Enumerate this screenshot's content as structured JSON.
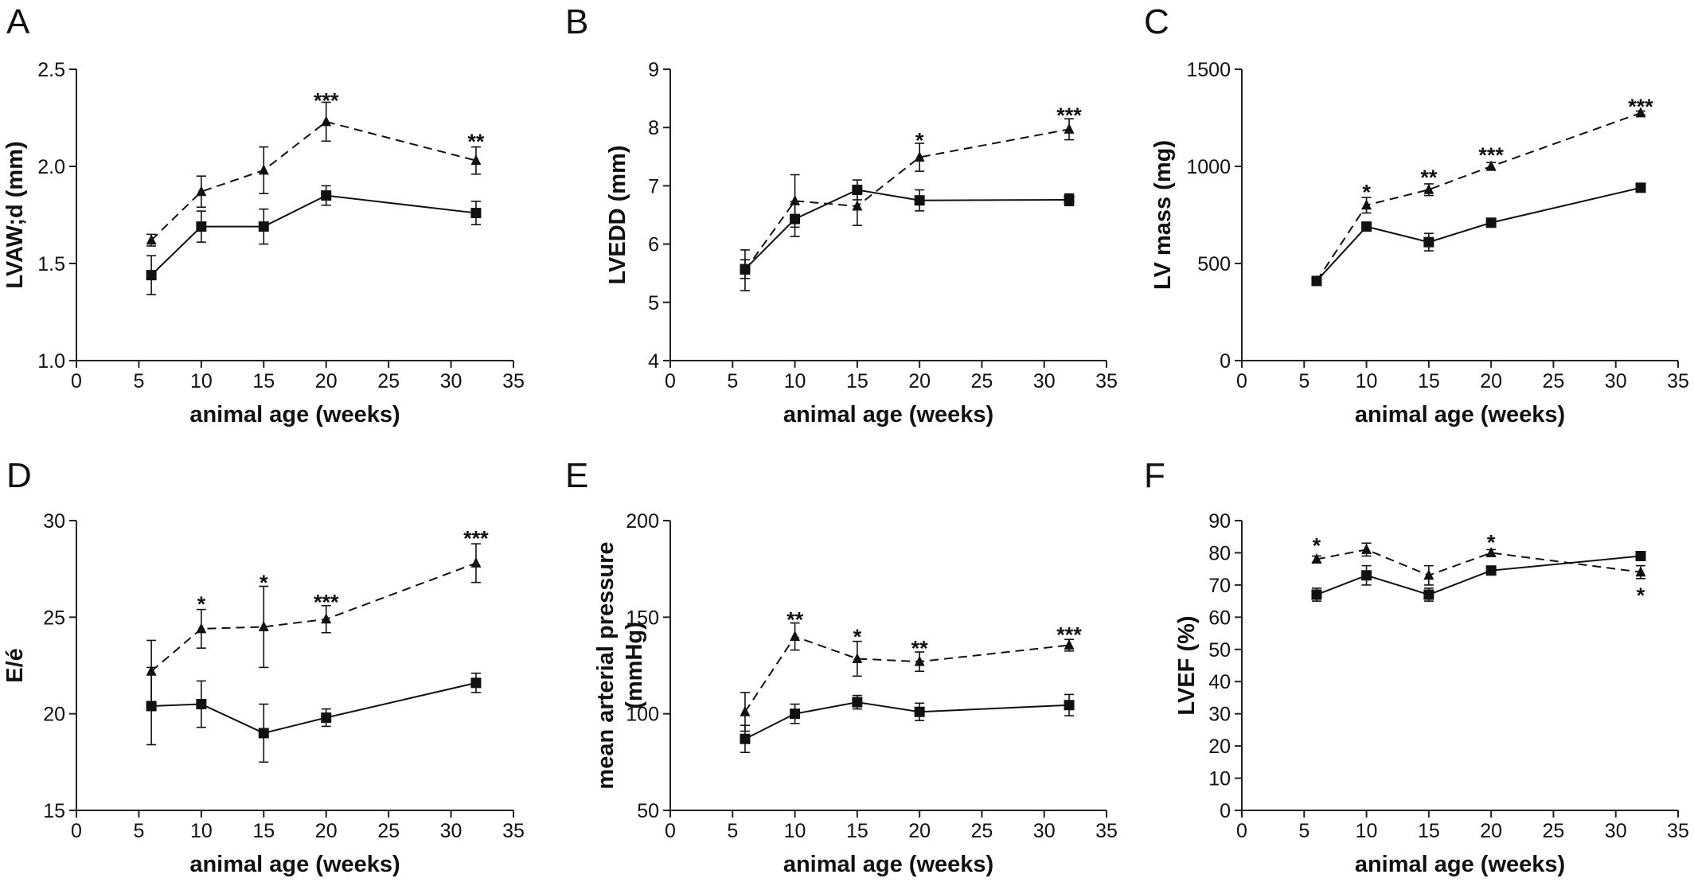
{
  "chart_data": [
    {
      "panel": "A",
      "type": "line",
      "xlabel": "animal age (weeks)",
      "ylabel": "LVAW;d (mm)",
      "xlim": [
        0,
        35
      ],
      "ylim": [
        1.0,
        2.5
      ],
      "xticks": [
        "0",
        "5",
        "10",
        "15",
        "20",
        "25",
        "30",
        "35"
      ],
      "yticks": [
        "1.0",
        "1.5",
        "2.0",
        "2.5"
      ],
      "x": [
        6,
        10,
        15,
        20,
        32
      ],
      "series": [
        {
          "marker": "square",
          "line": "solid",
          "values": [
            1.44,
            1.69,
            1.69,
            1.85,
            1.76
          ],
          "errors": [
            0.1,
            0.08,
            0.09,
            0.05,
            0.06
          ]
        },
        {
          "marker": "triangle",
          "line": "dashed",
          "values": [
            1.62,
            1.87,
            1.98,
            2.23,
            2.03
          ],
          "errors": [
            0.03,
            0.08,
            0.12,
            0.1,
            0.07
          ]
        }
      ],
      "annotations": [
        {
          "x": 20,
          "y": 2.35,
          "text": "***"
        },
        {
          "x": 32,
          "y": 2.14,
          "text": "**"
        }
      ]
    },
    {
      "panel": "B",
      "type": "line",
      "xlabel": "animal age (weeks)",
      "ylabel": "LVEDD (mm)",
      "xlim": [
        0,
        35
      ],
      "ylim": [
        4,
        9
      ],
      "xticks": [
        "0",
        "5",
        "10",
        "15",
        "20",
        "25",
        "30",
        "35"
      ],
      "yticks": [
        "4",
        "5",
        "6",
        "7",
        "8",
        "9"
      ],
      "x": [
        6,
        10,
        15,
        20,
        32
      ],
      "series": [
        {
          "marker": "square",
          "line": "solid",
          "values": [
            5.57,
            6.43,
            6.93,
            6.75,
            6.76
          ],
          "errors": [
            0.16,
            0.3,
            0.17,
            0.18,
            0.1
          ]
        },
        {
          "marker": "triangle",
          "line": "dashed",
          "values": [
            5.55,
            6.74,
            6.65,
            7.49,
            7.97
          ],
          "errors": [
            0.35,
            0.45,
            0.33,
            0.24,
            0.18
          ]
        }
      ],
      "annotations": [
        {
          "x": 20,
          "y": 7.82,
          "text": "*"
        },
        {
          "x": 32,
          "y": 8.25,
          "text": "***"
        }
      ]
    },
    {
      "panel": "C",
      "type": "line",
      "xlabel": "animal age (weeks)",
      "ylabel": "LV mass (mg)",
      "xlim": [
        0,
        35
      ],
      "ylim": [
        0,
        1500
      ],
      "xticks": [
        "0",
        "5",
        "10",
        "15",
        "20",
        "25",
        "30",
        "35"
      ],
      "yticks": [
        "0",
        "500",
        "1000",
        "1500"
      ],
      "x": [
        6,
        10,
        15,
        20,
        32
      ],
      "series": [
        {
          "marker": "square",
          "line": "solid",
          "values": [
            410,
            690,
            610,
            710,
            890
          ],
          "errors": [
            10,
            15,
            45,
            15,
            10
          ]
        },
        {
          "marker": "triangle",
          "line": "dashed",
          "values": [
            410,
            800,
            880,
            1000,
            1275
          ],
          "errors": [
            10,
            40,
            30,
            20,
            10
          ]
        }
      ],
      "annotations": [
        {
          "x": 10,
          "y": 880,
          "text": "*"
        },
        {
          "x": 15,
          "y": 955,
          "text": "**"
        },
        {
          "x": 20,
          "y": 1070,
          "text": "***"
        },
        {
          "x": 32,
          "y": 1320,
          "text": "***"
        }
      ]
    },
    {
      "panel": "D",
      "type": "line",
      "xlabel": "animal age (weeks)",
      "ylabel": "E/é",
      "xlim": [
        0,
        35
      ],
      "ylim": [
        15,
        30
      ],
      "xticks": [
        "0",
        "5",
        "10",
        "15",
        "20",
        "25",
        "30",
        "35"
      ],
      "yticks": [
        "15",
        "20",
        "25",
        "30"
      ],
      "x": [
        6,
        10,
        15,
        20,
        32
      ],
      "series": [
        {
          "marker": "square",
          "line": "solid",
          "values": [
            20.4,
            20.5,
            19.0,
            19.8,
            21.6
          ],
          "errors": [
            2.0,
            1.2,
            1.5,
            0.45,
            0.5
          ]
        },
        {
          "marker": "triangle",
          "line": "dashed",
          "values": [
            22.2,
            24.4,
            24.5,
            24.9,
            27.8
          ],
          "errors": [
            1.6,
            1.0,
            2.1,
            0.7,
            1.0
          ]
        }
      ],
      "annotations": [
        {
          "x": 10,
          "y": 25.8,
          "text": "*"
        },
        {
          "x": 15,
          "y": 26.9,
          "text": "*"
        },
        {
          "x": 20,
          "y": 25.9,
          "text": "***"
        },
        {
          "x": 32,
          "y": 29.2,
          "text": "***"
        }
      ]
    },
    {
      "panel": "E",
      "type": "line",
      "xlabel": "animal age (weeks)",
      "ylabel": "mean arterial pressure (mmHg)",
      "ylabel_lines": [
        "mean arterial pressure",
        "(mmHg)"
      ],
      "xlim": [
        0,
        35
      ],
      "ylim": [
        50,
        200
      ],
      "xticks": [
        "0",
        "5",
        "10",
        "15",
        "20",
        "25",
        "30",
        "35"
      ],
      "yticks": [
        "50",
        "100",
        "150",
        "200"
      ],
      "x": [
        6,
        10,
        15,
        20,
        32
      ],
      "series": [
        {
          "marker": "square",
          "line": "solid",
          "values": [
            87,
            100,
            106,
            101,
            104.5
          ],
          "errors": [
            7,
            5,
            3.5,
            4.5,
            5.5
          ]
        },
        {
          "marker": "triangle",
          "line": "dashed",
          "values": [
            101,
            140,
            128.5,
            127,
            135.5
          ],
          "errors": [
            10,
            7,
            9,
            5,
            3
          ]
        }
      ],
      "annotations": [
        {
          "x": 10,
          "y": 150,
          "text": "**"
        },
        {
          "x": 15,
          "y": 141,
          "text": "*"
        },
        {
          "x": 20,
          "y": 135,
          "text": "**"
        },
        {
          "x": 32,
          "y": 142,
          "text": "***"
        }
      ]
    },
    {
      "panel": "F",
      "type": "line",
      "xlabel": "animal age (weeks)",
      "ylabel": "LVEF (%)",
      "xlim": [
        0,
        35
      ],
      "ylim": [
        0,
        90
      ],
      "xticks": [
        "0",
        "5",
        "10",
        "15",
        "20",
        "25",
        "30",
        "35"
      ],
      "yticks": [
        "0",
        "10",
        "20",
        "30",
        "40",
        "50",
        "60",
        "70",
        "80",
        "90"
      ],
      "x": [
        6,
        10,
        15,
        20,
        32
      ],
      "series": [
        {
          "marker": "square",
          "line": "solid",
          "values": [
            67,
            73,
            67,
            74.5,
            79
          ],
          "errors": [
            2,
            3,
            2,
            1,
            1
          ]
        },
        {
          "marker": "triangle",
          "line": "dashed",
          "values": [
            78,
            81,
            73,
            80,
            74
          ],
          "errors": [
            1,
            2,
            3,
            1,
            2
          ]
        }
      ],
      "annotations": [
        {
          "x": 6,
          "y": 83,
          "text": "*"
        },
        {
          "x": 20,
          "y": 84,
          "text": "*"
        },
        {
          "x": 32,
          "y": 67.5,
          "text": "*"
        }
      ]
    }
  ]
}
